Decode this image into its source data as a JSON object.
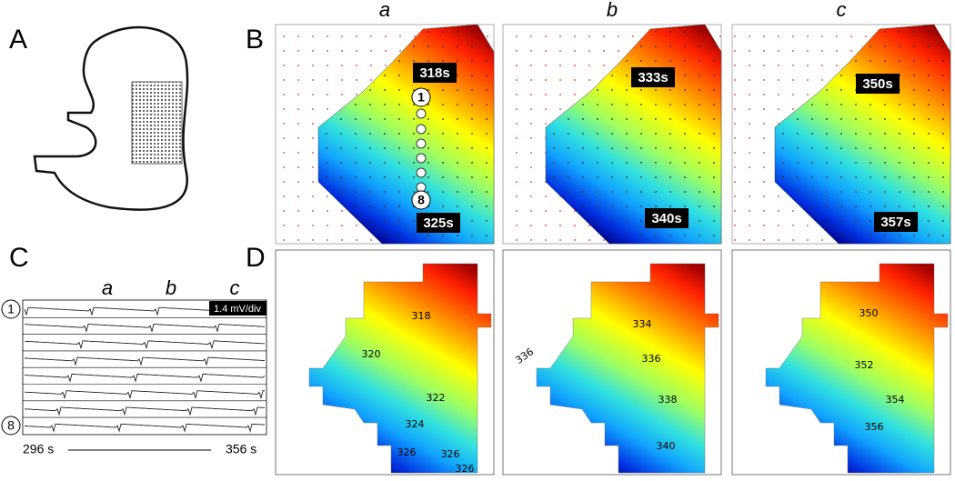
{
  "panel_labels": [
    "A",
    "B",
    "C",
    "D"
  ],
  "panel_b": {
    "columns": [
      "a",
      "b",
      "c"
    ],
    "maps": [
      {
        "start": "318s",
        "end": "325s"
      },
      {
        "start": "333s",
        "end": "340s"
      },
      {
        "start": "350s",
        "end": "357s"
      }
    ],
    "electrodes": [
      "1",
      "8"
    ]
  },
  "panel_c": {
    "columns": [
      "a",
      "b",
      "c"
    ],
    "electrodes": [
      "1",
      "8"
    ],
    "scale": "1.4 mV/div",
    "time_start": "296 s",
    "time_end": "356 s"
  },
  "panel_d": {
    "maps": [
      {
        "contour_labels": [
          318,
          320,
          322,
          324,
          326,
          326,
          326
        ]
      },
      {
        "contour_labels": [
          334,
          336,
          336,
          338,
          340
        ]
      },
      {
        "contour_labels": [
          350,
          352,
          354,
          356
        ]
      }
    ]
  }
}
